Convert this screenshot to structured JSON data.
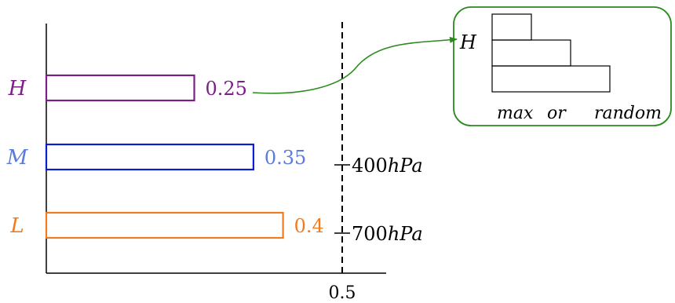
{
  "chart_data": {
    "type": "bar",
    "orientation": "horizontal",
    "categories": [
      "H",
      "M",
      "L"
    ],
    "values": [
      0.25,
      0.35,
      0.4
    ],
    "value_labels": [
      "0.25",
      "0.35",
      "0.4"
    ],
    "xlim": [
      0,
      0.6
    ],
    "xticks": [
      {
        "value": 0.5,
        "label": "0.5"
      }
    ],
    "colors": [
      "#7a1f86",
      "#0a1fd2",
      "#f07c22"
    ],
    "label_colors": [
      "#7a1f86",
      "#5b7cd8",
      "#f07c22"
    ],
    "reference_line": {
      "value": 0.5,
      "style": "dashed",
      "color": "#000000"
    },
    "pressure_labels": [
      {
        "between": [
          "H",
          "M"
        ],
        "label": "400hPa"
      },
      {
        "between": [
          "M",
          "L"
        ],
        "label": "700hPa"
      }
    ],
    "inset": {
      "label": "H",
      "steps": [
        0.3,
        0.6,
        0.9
      ],
      "caption_left": "max",
      "caption_mid": "or",
      "caption_right": "random",
      "arrow_color": "#2a8a1e",
      "border_color": "#2a8a1e"
    },
    "grid": false,
    "legend": "none"
  }
}
